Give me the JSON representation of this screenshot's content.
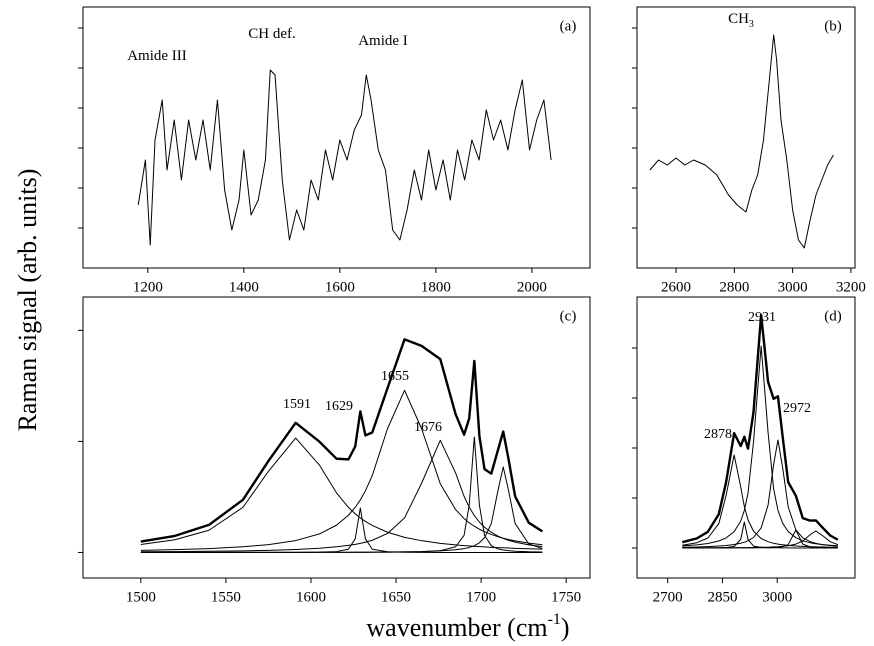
{
  "figure": {
    "ylabel": "Raman signal (arb. units)",
    "xlabel": [
      "wavenumber (cm",
      "-1",
      ")"
    ]
  },
  "chart_data": [
    {
      "type": "line",
      "label": "(a)",
      "annotations": [
        {
          "text": "Amide III"
        },
        {
          "text": "CH def."
        },
        {
          "text": "Amide I"
        }
      ],
      "x": [
        1180,
        1195,
        1205,
        1215,
        1230,
        1240,
        1255,
        1270,
        1285,
        1300,
        1315,
        1330,
        1345,
        1360,
        1375,
        1390,
        1400,
        1415,
        1430,
        1445,
        1455,
        1465,
        1480,
        1495,
        1510,
        1525,
        1540,
        1555,
        1570,
        1585,
        1600,
        1615,
        1630,
        1645,
        1655,
        1665,
        1680,
        1695,
        1710,
        1725,
        1740,
        1755,
        1770,
        1785,
        1800,
        1815,
        1830,
        1845,
        1860,
        1875,
        1890,
        1905,
        1920,
        1935,
        1950,
        1965,
        1980,
        1995,
        2010,
        2025,
        2040
      ],
      "series": [
        {
          "color": "#000000",
          "values": [
            6.3,
            10.8,
            2.3,
            12.8,
            16.8,
            9.8,
            14.8,
            8.8,
            14.8,
            10.8,
            14.8,
            9.8,
            16.8,
            7.8,
            3.8,
            6.8,
            11.8,
            5.3,
            6.8,
            10.8,
            19.8,
            19.3,
            8.8,
            2.8,
            5.8,
            3.8,
            8.8,
            6.8,
            11.8,
            8.8,
            12.8,
            10.8,
            13.8,
            15.3,
            19.3,
            16.8,
            11.8,
            9.8,
            3.8,
            2.8,
            5.8,
            9.8,
            6.8,
            11.8,
            7.8,
            10.8,
            6.8,
            11.8,
            8.8,
            12.8,
            10.8,
            15.8,
            12.8,
            14.8,
            11.8,
            15.8,
            18.8,
            11.8,
            14.8,
            16.8,
            10.8
          ]
        }
      ],
      "xlim": [
        1065,
        2121
      ],
      "xticks": [
        1200,
        1400,
        1600,
        1800,
        2000
      ],
      "ylim": [
        0,
        26.1
      ],
      "yticks": [
        4,
        8,
        12,
        16,
        20,
        24
      ]
    },
    {
      "type": "line",
      "label": "(b)",
      "annotations": [
        {
          "text": "CH",
          "sub": "3"
        }
      ],
      "x": [
        2510,
        2540,
        2570,
        2600,
        2630,
        2660,
        2700,
        2740,
        2780,
        2810,
        2840,
        2860,
        2880,
        2900,
        2920,
        2935,
        2945,
        2960,
        2980,
        3000,
        3020,
        3040,
        3060,
        3080,
        3100,
        3120,
        3140
      ],
      "series": [
        {
          "color": "#000000",
          "values": [
            9.8,
            10.8,
            10.3,
            11.0,
            10.3,
            10.8,
            10.3,
            9.3,
            7.3,
            6.3,
            5.6,
            7.8,
            9.3,
            12.8,
            18.8,
            23.3,
            20.8,
            14.8,
            10.8,
            5.8,
            2.8,
            2.0,
            4.8,
            7.3,
            8.8,
            10.3,
            11.3
          ]
        }
      ],
      "xlim": [
        2466,
        3214
      ],
      "xticks": [
        2600,
        2800,
        3000,
        3200
      ],
      "ylim": [
        0,
        26.1
      ],
      "yticks": [
        4,
        8,
        12,
        16,
        20,
        24
      ]
    },
    {
      "type": "line",
      "label": "(c)",
      "annotations": [
        {
          "text": "1591"
        },
        {
          "text": "1629"
        },
        {
          "text": "1655"
        },
        {
          "text": "1676"
        }
      ],
      "x": [
        1500,
        1520,
        1540,
        1560,
        1575,
        1591,
        1605,
        1615,
        1622,
        1626,
        1629,
        1632,
        1636,
        1645,
        1655,
        1665,
        1676,
        1685,
        1690,
        1693,
        1696,
        1699,
        1702,
        1706,
        1710,
        1713,
        1716,
        1720,
        1728,
        1736
      ],
      "series": [
        {
          "color": "#000000",
          "values": [
            0.098,
            0.149,
            0.248,
            0.474,
            0.824,
            1.167,
            0.997,
            0.844,
            0.838,
            0.954,
            1.27,
            1.054,
            1.08,
            1.48,
            1.919,
            1.86,
            1.741,
            1.245,
            1.061,
            1.206,
            1.724,
            1.047,
            0.75,
            0.71,
            0.928,
            1.089,
            0.849,
            0.505,
            0.268,
            0.19
          ]
        },
        {
          "color": "#000000",
          "values": [
            0.072,
            0.114,
            0.2,
            0.406,
            0.731,
            1.03,
            0.786,
            0.536,
            0.406,
            0.348,
            0.311,
            0.279,
            0.243,
            0.182,
            0.136,
            0.106,
            0.082,
            0.068,
            0.062,
            0.059,
            0.055,
            0.052,
            0.05,
            0.046,
            0.043,
            0.042,
            0.04,
            0.037,
            0.033,
            0.03
          ]
        },
        {
          "color": "#000000",
          "values": [
            0,
            0.001,
            0.001,
            0.001,
            0.001,
            0.001,
            0.003,
            0.008,
            0.03,
            0.123,
            0.4,
            0.123,
            0.03,
            0.006,
            0.002,
            0.001,
            0,
            0,
            0,
            0,
            0,
            0,
            0,
            0,
            0,
            0,
            0,
            0,
            0,
            0
          ]
        },
        {
          "color": "#000000",
          "values": [
            0.019,
            0.025,
            0.035,
            0.051,
            0.071,
            0.107,
            0.167,
            0.246,
            0.335,
            0.406,
            0.473,
            0.555,
            0.692,
            1.115,
            1.46,
            1.115,
            0.619,
            0.386,
            0.305,
            0.267,
            0.236,
            0.209,
            0.187,
            0.162,
            0.141,
            0.128,
            0.117,
            0.104,
            0.084,
            0.069
          ]
        },
        {
          "color": "#000000",
          "values": [
            0.006,
            0.008,
            0.011,
            0.014,
            0.019,
            0.027,
            0.038,
            0.051,
            0.064,
            0.073,
            0.082,
            0.093,
            0.11,
            0.171,
            0.311,
            0.623,
            1.01,
            0.716,
            0.505,
            0.409,
            0.332,
            0.273,
            0.227,
            0.181,
            0.146,
            0.127,
            0.11,
            0.093,
            0.068,
            0.052
          ]
        },
        {
          "color": "#000000",
          "values": [
            0,
            0,
            0,
            0.001,
            0.001,
            0.001,
            0.001,
            0.001,
            0.001,
            0.001,
            0.001,
            0.001,
            0.002,
            0.002,
            0.004,
            0.007,
            0.016,
            0.051,
            0.154,
            0.426,
            1.04,
            0.426,
            0.154,
            0.061,
            0.032,
            0.022,
            0.016,
            0.011,
            0.006,
            0.004
          ]
        },
        {
          "color": "#000000",
          "values": [
            0.001,
            0.001,
            0.001,
            0.001,
            0.001,
            0.001,
            0.002,
            0.002,
            0.002,
            0.003,
            0.003,
            0.003,
            0.003,
            0.004,
            0.006,
            0.008,
            0.014,
            0.024,
            0.035,
            0.045,
            0.061,
            0.087,
            0.132,
            0.26,
            0.566,
            0.77,
            0.566,
            0.26,
            0.077,
            0.035
          ]
        }
      ],
      "xlim": [
        1466,
        1764
      ],
      "xticks": [
        1500,
        1550,
        1600,
        1650,
        1700,
        1750
      ],
      "ylim": [
        -0.23,
        2.3
      ],
      "yticks": [
        0,
        1,
        2
      ]
    },
    {
      "type": "line",
      "label": "(d)",
      "annotations": [
        {
          "text": "2931"
        },
        {
          "text": "2878"
        },
        {
          "text": "2972"
        }
      ],
      "x": [
        2740,
        2780,
        2810,
        2840,
        2860,
        2882,
        2900,
        2910,
        2920,
        2935,
        2956,
        2975,
        2990,
        3002,
        3015,
        3030,
        3051,
        3070,
        3090,
        3106,
        3125,
        3145,
        3166
      ],
      "series": [
        {
          "color": "#000000",
          "values": [
            0.058,
            0.096,
            0.162,
            0.338,
            0.658,
            1.148,
            1.02,
            1.112,
            0.993,
            1.357,
            2.331,
            1.661,
            1.492,
            1.517,
            1.11,
            0.659,
            0.523,
            0.299,
            0.274,
            0.276,
            0.201,
            0.125,
            0.083
          ]
        },
        {
          "color": "#000000",
          "values": [
            0.028,
            0.053,
            0.1,
            0.243,
            0.525,
            0.93,
            0.612,
            0.413,
            0.281,
            0.169,
            0.095,
            0.063,
            0.047,
            0.039,
            0.032,
            0.026,
            0.02,
            0.016,
            0.013,
            0.011,
            0.01,
            0.008,
            0.007
          ]
        },
        {
          "color": "#000000",
          "values": [
            0,
            0.001,
            0.001,
            0.003,
            0.005,
            0.015,
            0.086,
            0.26,
            0.086,
            0.019,
            0.006,
            0.003,
            0.002,
            0.002,
            0.001,
            0.001,
            0,
            0,
            0,
            0,
            0,
            0,
            0
          ]
        },
        {
          "color": "#000000",
          "values": [
            0.021,
            0.031,
            0.045,
            0.07,
            0.101,
            0.164,
            0.269,
            0.376,
            0.549,
            1.058,
            2.02,
            1.154,
            0.596,
            0.376,
            0.247,
            0.164,
            0.103,
            0.072,
            0.053,
            0.043,
            0.034,
            0.027,
            0.022
          ]
        },
        {
          "color": "#000000",
          "values": [
            0.008,
            0.01,
            0.014,
            0.02,
            0.025,
            0.035,
            0.048,
            0.058,
            0.072,
            0.105,
            0.201,
            0.43,
            0.831,
            1.08,
            0.8,
            0.412,
            0.181,
            0.102,
            0.064,
            0.046,
            0.033,
            0.025,
            0.019
          ]
        },
        {
          "color": "#000000",
          "values": [
            0,
            0,
            0,
            0,
            0,
            0.001,
            0.001,
            0.001,
            0.001,
            0.001,
            0.002,
            0.003,
            0.005,
            0.007,
            0.013,
            0.033,
            0.18,
            0.039,
            0.011,
            0.006,
            0.003,
            0.002,
            0.001
          ]
        },
        {
          "color": "#000000",
          "values": [
            0.001,
            0.001,
            0.002,
            0.002,
            0.002,
            0.003,
            0.004,
            0.004,
            0.004,
            0.005,
            0.007,
            0.008,
            0.011,
            0.013,
            0.017,
            0.023,
            0.039,
            0.07,
            0.133,
            0.17,
            0.121,
            0.063,
            0.034
          ]
        }
      ],
      "xlim": [
        2616,
        3213
      ],
      "xticks": [
        2700,
        2850,
        3000
      ],
      "ylim": [
        -0.3,
        2.51
      ],
      "yticks": [
        0,
        0.5,
        1,
        1.5,
        2
      ]
    }
  ]
}
